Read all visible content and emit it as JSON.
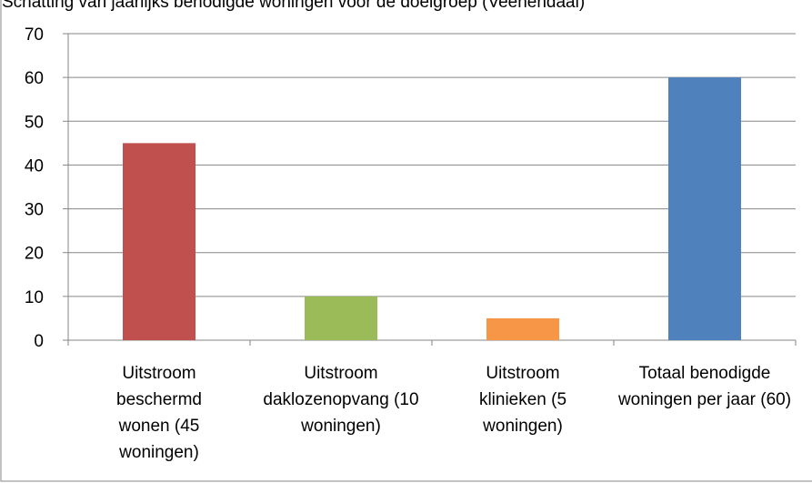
{
  "chart_data": {
    "type": "bar",
    "title": "Schatting van jaarlijks benodigde woningen voor de doelgroep (Veenendaal)",
    "categories": [
      "Uitstroom beschermd wonen (45 woningen)",
      "Uitstroom daklozenopvang (10 woningen)",
      "Uitstroom klinieken (5 woningen)",
      "Totaal benodigde woningen per jaar (60)"
    ],
    "values": [
      45,
      10,
      5,
      60
    ],
    "colors": [
      "#c0504d",
      "#9bbb59",
      "#f79646",
      "#4f81bd"
    ],
    "ylim": [
      0,
      70
    ],
    "yticks": [
      0,
      10,
      20,
      30,
      40,
      50,
      60,
      70
    ],
    "grid": true
  }
}
